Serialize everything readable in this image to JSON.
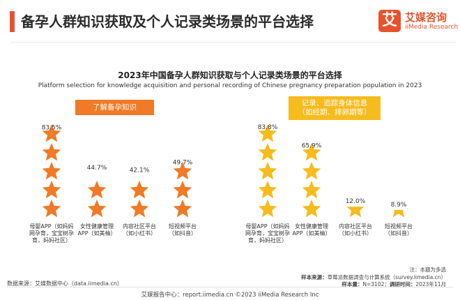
{
  "header": {
    "title": "备孕人群知识获取及个人记录类场景的平台选择"
  },
  "logo": {
    "mark": "艾",
    "cn": "艾媒咨询",
    "en": "iiMedia Research"
  },
  "colors": {
    "accent": "#e8522d",
    "group1": "#f07a26",
    "group2": "#f6bb1d"
  },
  "chart_data": {
    "type": "bar",
    "title": "2023年中国备孕人群知识获取与个人记录类场景的平台选择",
    "subtitle": "Platform selection for knowledge acquisition and personal recording of Chinese pregnancy preparation population in 2023",
    "unit": "%",
    "ylim": [
      0,
      100
    ],
    "grid": false,
    "legend": "none",
    "categories": [
      "母婴APP（如妈妈网孕育，宝宝树孕育，妈妈社区）",
      "女性健康管理APP（如美柚）",
      "内容社区平台（如小红书）",
      "短视频平台（如抖音）"
    ],
    "category_labels": [
      "母婴APP（如妈妈\n网孕育，宝宝树孕\n育，妈妈社区）",
      "女性健康管理\nAPP（如美柚）",
      "内容社区平台\n（如小红书）",
      "短视频平台\n（如抖音）"
    ],
    "series": [
      {
        "name": "了解备孕知识",
        "label_lines": [
          "了解备孕知识"
        ],
        "color": "#f07a26",
        "values": [
          83.5,
          44.7,
          42.1,
          49.7
        ],
        "value_labels": [
          "83.5%",
          "44.7%",
          "42.1%",
          "49.7%"
        ]
      },
      {
        "name": "记录、追踪身体信息（如经期、排卵期等）",
        "label_lines": [
          "记录、追踪身体信息",
          "（如经期、排卵期等）"
        ],
        "color": "#f6bb1d",
        "values": [
          83.8,
          65.9,
          12.0,
          8.9
        ],
        "value_labels": [
          "83.8%",
          "65.9%",
          "12.0%",
          "8.9%"
        ]
      }
    ]
  },
  "footer": {
    "note": "注：本题为多选",
    "source_left": "数据来源：艾媒数据中心（data.iimedia.cn）",
    "sample_source_label": "样本来源：",
    "sample_source": "草莓派数据调查与计算系统（survey.iimedia.cn）",
    "sample_size_label": "样本量：",
    "sample_size": "N=3102；",
    "survey_time_label": "调研时间：",
    "survey_time": "2023年11月",
    "bottom": "艾媒报告中心：report.iimedia.cn  ©2023  iiMedia Research  Inc"
  }
}
